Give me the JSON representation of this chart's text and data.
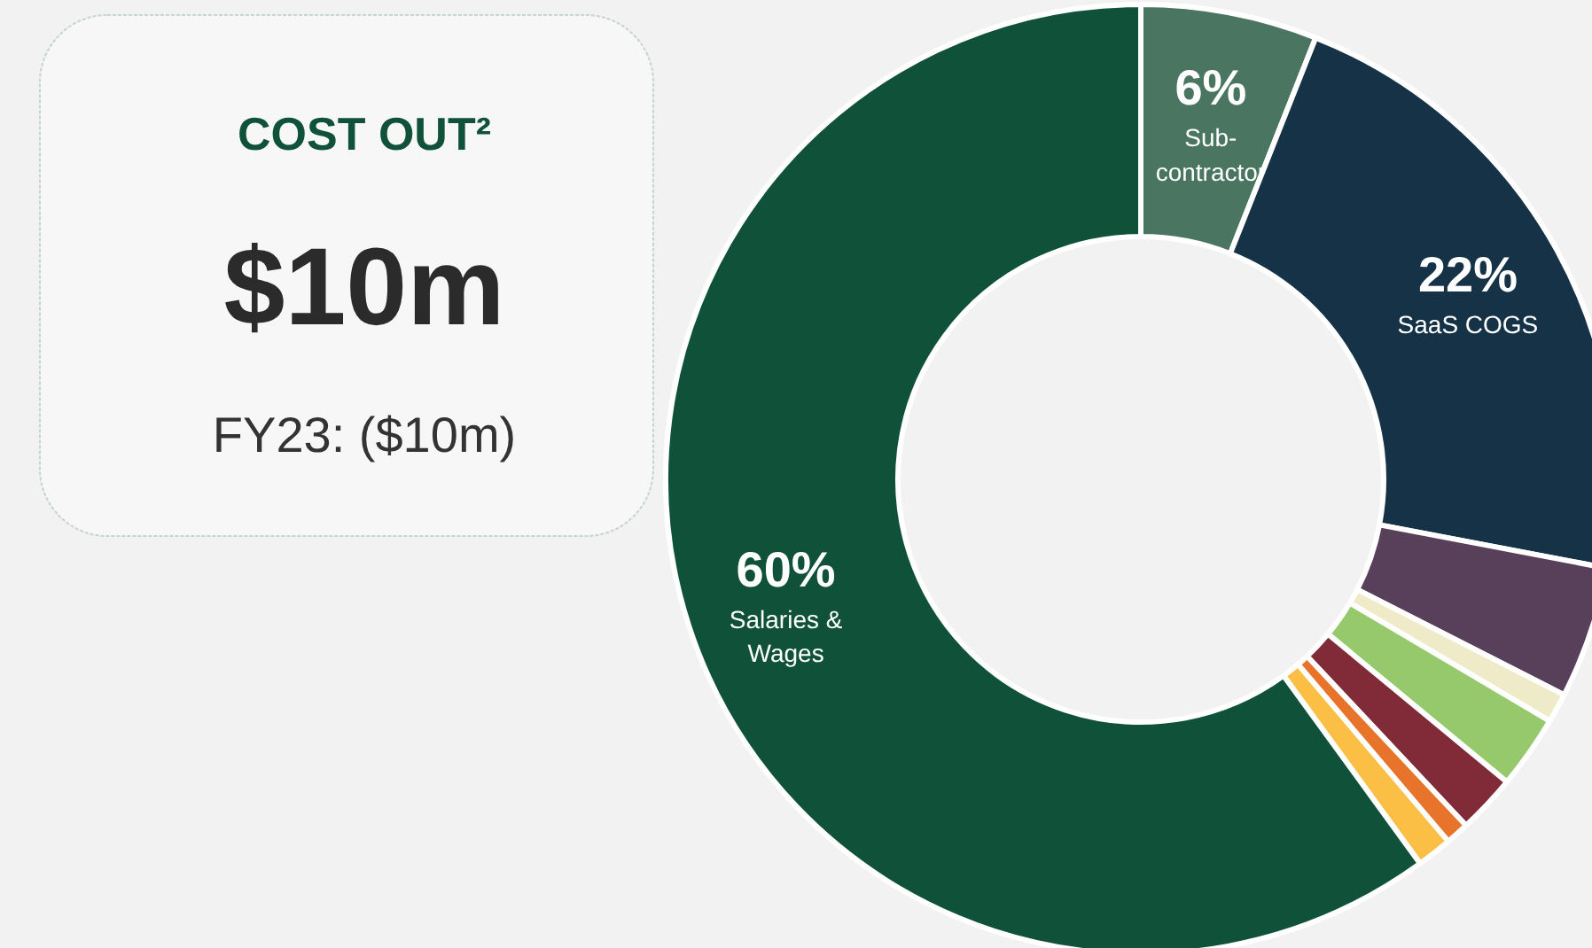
{
  "chart_data": [
    {
      "type": "other",
      "title": "COST OUT²",
      "annotations": [
        "$10m",
        "FY23: ($10m)"
      ]
    },
    {
      "type": "donut",
      "categories": [
        "Sub-\ncontractor",
        "SaaS COGS",
        null,
        null,
        null,
        null,
        null,
        null,
        "Salaries &\nWages"
      ],
      "values": [
        6,
        22,
        4.5,
        1,
        2.5,
        2,
        0.8,
        1.2,
        60
      ],
      "value_labels": [
        "6%",
        "22%",
        null,
        null,
        null,
        null,
        null,
        null,
        "60%"
      ],
      "colors": [
        "#4a7560",
        "#163246",
        "#58405a",
        "#efebc9",
        "#95c96c",
        "#812a38",
        "#e7742a",
        "#fbbf45",
        "#10513a"
      ]
    }
  ]
}
